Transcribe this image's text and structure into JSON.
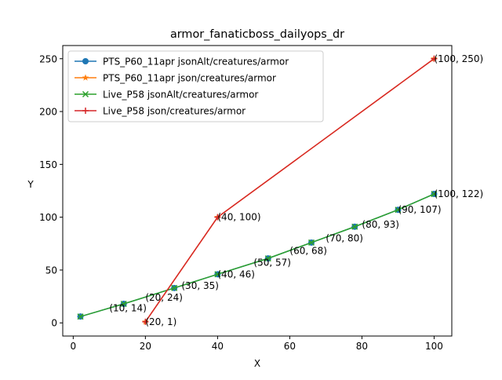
{
  "chart_data": {
    "type": "line",
    "title": "armor_fanaticboss_dailyops_dr",
    "xlabel": "X",
    "ylabel": "Y",
    "xlim": [
      -2.9,
      104.9
    ],
    "ylim": [
      -12.45,
      262.45
    ],
    "xticks": [
      0,
      20,
      40,
      60,
      80,
      100
    ],
    "yticks": [
      0,
      50,
      100,
      150,
      200,
      250
    ],
    "legend_position": "upper-left",
    "series": [
      {
        "name": "PTS_P60_11apr jsonAlt/creatures/armor",
        "color": "#1f77b4",
        "marker": "circle",
        "x": [
          2,
          14,
          28,
          40,
          54,
          66,
          78,
          90,
          100
        ],
        "y": [
          6,
          18,
          33,
          46,
          61,
          76,
          91,
          107,
          122
        ]
      },
      {
        "name": "PTS_P60_11apr json/creatures/armor",
        "color": "#ff7f0e",
        "marker": "star",
        "x": [
          20,
          40,
          100
        ],
        "y": [
          1,
          100,
          250
        ]
      },
      {
        "name": "Live_P58 jsonAlt/creatures/armor",
        "color": "#2ca02c",
        "marker": "x",
        "x": [
          2,
          14,
          28,
          40,
          54,
          66,
          78,
          90,
          100
        ],
        "y": [
          6,
          18,
          33,
          46,
          61,
          76,
          91,
          107,
          122
        ]
      },
      {
        "name": "Live_P58 json/creatures/armor",
        "color": "#d62728",
        "marker": "plus",
        "x": [
          20,
          40,
          100
        ],
        "y": [
          1,
          100,
          250
        ]
      }
    ],
    "annotations": [
      {
        "text": "(10, 14)",
        "x": 10,
        "y": 14
      },
      {
        "text": "(20, 24)",
        "x": 20,
        "y": 24
      },
      {
        "text": "(30, 35)",
        "x": 30,
        "y": 35
      },
      {
        "text": "(40, 46)",
        "x": 40,
        "y": 46
      },
      {
        "text": "(50, 57)",
        "x": 50,
        "y": 57
      },
      {
        "text": "(60, 68)",
        "x": 60,
        "y": 68
      },
      {
        "text": "(70, 80)",
        "x": 70,
        "y": 80
      },
      {
        "text": "(80, 93)",
        "x": 80,
        "y": 93
      },
      {
        "text": "(90, 107)",
        "x": 90,
        "y": 107
      },
      {
        "text": "(100, 122)",
        "x": 100,
        "y": 122
      },
      {
        "text": "(20, 1)",
        "x": 20,
        "y": 1
      },
      {
        "text": "(40, 100)",
        "x": 40,
        "y": 100
      },
      {
        "text": "(100, 250)",
        "x": 100,
        "y": 250
      }
    ]
  }
}
